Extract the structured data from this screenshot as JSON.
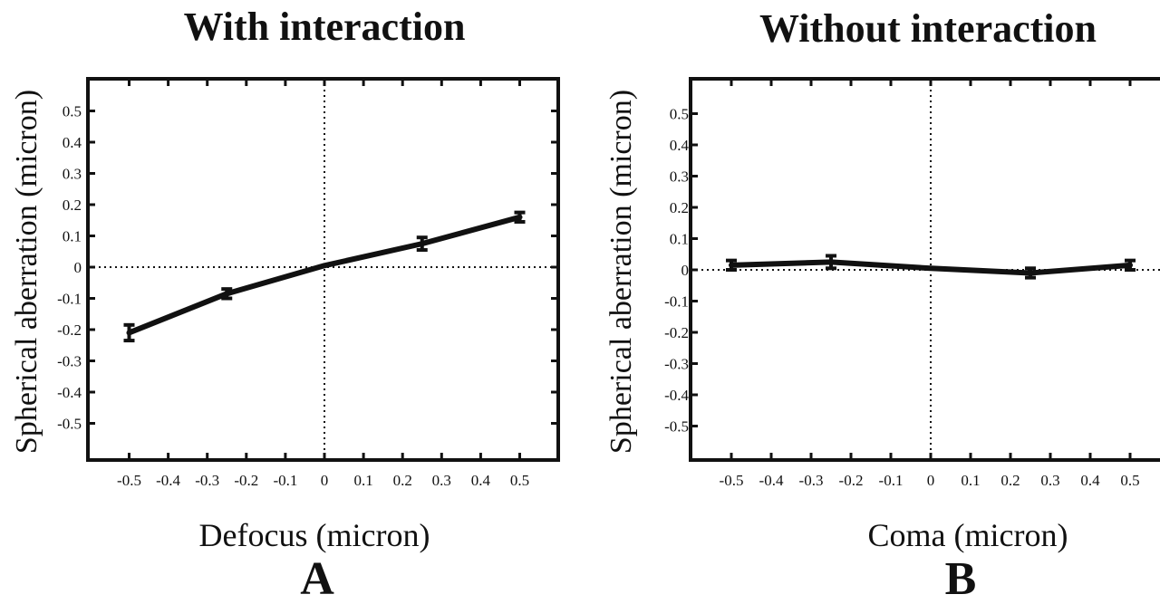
{
  "colors": {
    "line": "#111111",
    "background": "#ffffff"
  },
  "chart_data": [
    {
      "type": "line",
      "panel_letter": "A",
      "title": "With interaction",
      "xlabel": "Defocus (micron)",
      "ylabel": "Spherical aberration (micron)",
      "xlim": [
        -0.6,
        0.6
      ],
      "ylim": [
        -0.6,
        0.6
      ],
      "x_ticks": [
        "-0.5",
        "-0.4",
        "-0.3",
        "-0.2",
        "-0.1",
        "0",
        "0.1",
        "0.2",
        "0.3",
        "0.4",
        "0.5"
      ],
      "y_ticks": [
        "0.5",
        "0.4",
        "0.3",
        "0.2",
        "0.1",
        "0",
        "-0.1",
        "-0.2",
        "-0.3",
        "-0.4",
        "-0.5"
      ],
      "reference_lines": {
        "x": 0,
        "y": 0,
        "style": "dotted"
      },
      "series": [
        {
          "x": [
            -0.5,
            -0.25,
            0.0,
            0.25,
            0.5
          ],
          "y": [
            -0.21,
            -0.085,
            0.005,
            0.075,
            0.16
          ],
          "error": [
            0.025,
            0.015,
            0.0,
            0.02,
            0.015
          ]
        }
      ]
    },
    {
      "type": "line",
      "panel_letter": "B",
      "title": "Without interaction",
      "xlabel": "Coma (micron)",
      "ylabel": "Spherical aberration (micron)",
      "xlim": [
        -0.6,
        0.6
      ],
      "ylim": [
        -0.6,
        0.6
      ],
      "x_ticks": [
        "-0.5",
        "-0.4",
        "-0.3",
        "-0.2",
        "-0.1",
        "0",
        "0.1",
        "0.2",
        "0.3",
        "0.4",
        "0.5"
      ],
      "y_ticks": [
        "0.5",
        "0.4",
        "0.3",
        "0.2",
        "0.1",
        "0",
        "-0.1",
        "-0.2",
        "-0.3",
        "-0.4",
        "-0.5"
      ],
      "reference_lines": {
        "x": 0,
        "y": 0,
        "style": "dotted"
      },
      "series": [
        {
          "x": [
            -0.5,
            -0.25,
            0.0,
            0.25,
            0.5
          ],
          "y": [
            0.015,
            0.025,
            0.005,
            -0.01,
            0.015
          ],
          "error": [
            0.015,
            0.02,
            0.0,
            0.015,
            0.015
          ]
        }
      ]
    }
  ]
}
